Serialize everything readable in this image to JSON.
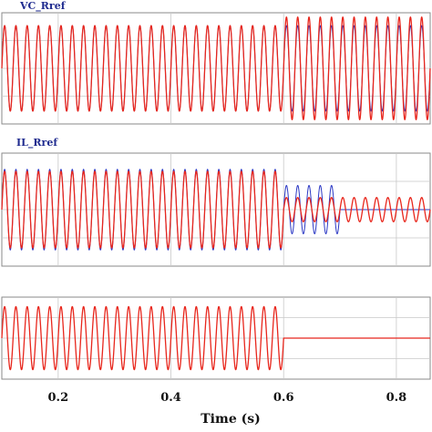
{
  "chart_data": {
    "type": "line",
    "xlabel": "Time (s)",
    "xlim": [
      0.1,
      0.86
    ],
    "xticks": [
      0.2,
      0.4,
      0.6,
      0.8
    ],
    "grid": true,
    "colors": {
      "reference": "#e8261c",
      "measured": "#2b38c4",
      "panel_title": "#1f2b8f",
      "grid": "#c8c8c8"
    },
    "panels": [
      {
        "title": "VC_Rref",
        "ylim": [
          -1.3,
          1.3
        ],
        "frequency_hz": 50,
        "series": [
          {
            "role": "reference",
            "segments": [
              {
                "t0": 0.1,
                "t1": 0.6,
                "amplitude": 1.0,
                "type": "sine"
              },
              {
                "t0": 0.6,
                "t1": 0.86,
                "amplitude": 1.2,
                "type": "sine"
              }
            ]
          },
          {
            "role": "measured",
            "segments": [
              {
                "t0": 0.1,
                "t1": 0.6,
                "amplitude": 1.0,
                "type": "sine"
              },
              {
                "t0": 0.6,
                "t1": 0.86,
                "amplitude": 1.0,
                "type": "sine"
              }
            ]
          }
        ]
      },
      {
        "title": "IL_Rref",
        "ylim": [
          -1.4,
          1.4
        ],
        "frequency_hz": 50,
        "series": [
          {
            "role": "reference",
            "segments": [
              {
                "t0": 0.1,
                "t1": 0.6,
                "amplitude": 0.95,
                "type": "sine"
              },
              {
                "t0": 0.6,
                "t1": 0.86,
                "amplitude": 0.3,
                "type": "sine"
              }
            ]
          },
          {
            "role": "measured",
            "segments": [
              {
                "t0": 0.1,
                "t1": 0.6,
                "amplitude": 1.0,
                "type": "sine"
              },
              {
                "t0": 0.6,
                "t1": 0.7,
                "amplitude": 0.6,
                "type": "sine"
              },
              {
                "t0": 0.7,
                "t1": 0.86,
                "amplitude": 0.0,
                "type": "sine"
              }
            ]
          }
        ]
      },
      {
        "title": "",
        "ylim": [
          -1.3,
          1.3
        ],
        "frequency_hz": 50,
        "series": [
          {
            "role": "reference",
            "segments": [
              {
                "t0": 0.1,
                "t1": 0.6,
                "amplitude": 1.0,
                "type": "sine"
              },
              {
                "t0": 0.6,
                "t1": 0.86,
                "amplitude": 0.0,
                "type": "constant"
              }
            ]
          }
        ]
      }
    ]
  }
}
